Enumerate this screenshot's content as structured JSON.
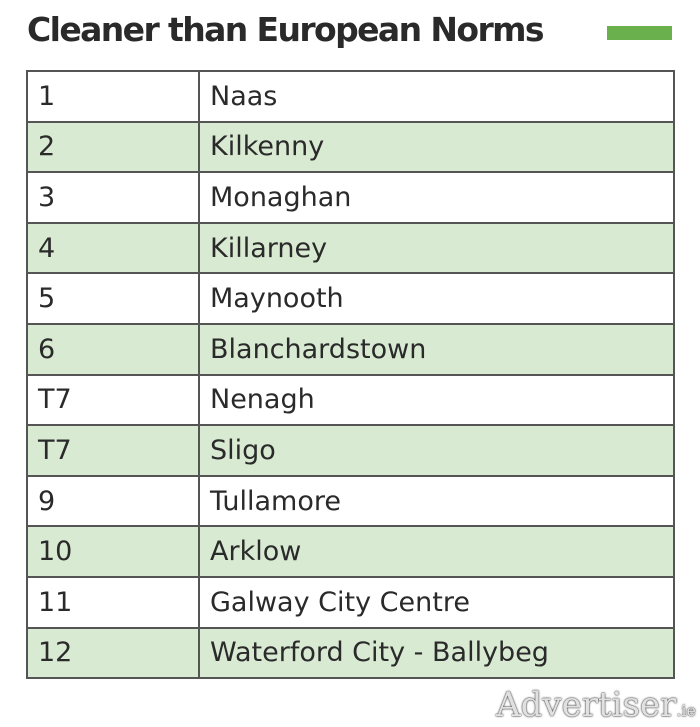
{
  "title": "Cleaner than European Norms",
  "legend_color": "#6ab04c",
  "shade_color": "#d9ead3",
  "rows": [
    {
      "rank": "1",
      "town": "Naas"
    },
    {
      "rank": "2",
      "town": "Kilkenny"
    },
    {
      "rank": "3",
      "town": "Monaghan"
    },
    {
      "rank": "4",
      "town": "Killarney"
    },
    {
      "rank": "5",
      "town": "Maynooth"
    },
    {
      "rank": "6",
      "town": "Blanchardstown"
    },
    {
      "rank": "T7",
      "town": "Nenagh"
    },
    {
      "rank": "T7",
      "town": "Sligo"
    },
    {
      "rank": "9",
      "town": "Tullamore"
    },
    {
      "rank": "10",
      "town": "Arklow"
    },
    {
      "rank": "11",
      "town": "Galway City Centre"
    },
    {
      "rank": "12",
      "town": "Waterford City - Ballybeg"
    }
  ],
  "watermark": {
    "main": "Advertiser",
    "suffix": ".ie"
  }
}
